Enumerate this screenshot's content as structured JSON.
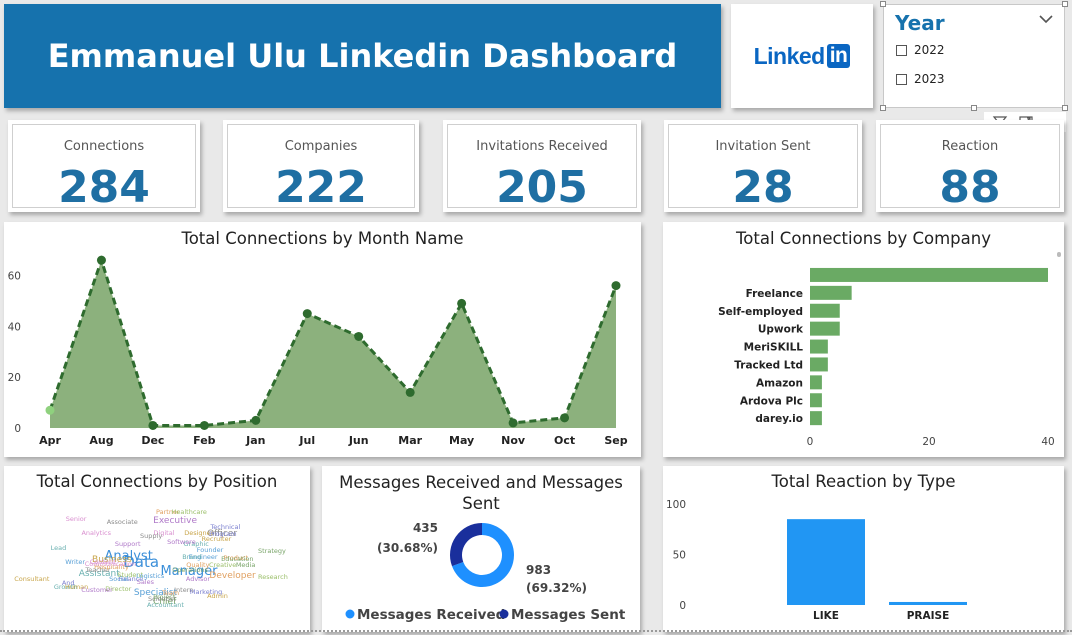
{
  "header": {
    "title": "Emmanuel Ulu Linkedin Dashboard"
  },
  "logo": {
    "word": "Linked",
    "mark": "in"
  },
  "slicer": {
    "title": "Year",
    "options": [
      {
        "label": "2022",
        "checked": false
      },
      {
        "label": "2023",
        "checked": false
      }
    ]
  },
  "visual_header_icons": [
    "filter-icon",
    "focus-mode-icon",
    "more-options-icon"
  ],
  "kpis": [
    {
      "label": "Connections",
      "value": "284"
    },
    {
      "label": "Companies",
      "value": "222"
    },
    {
      "label": "Invitations Received",
      "value": "205"
    },
    {
      "label": "Invitation Sent",
      "value": "28"
    },
    {
      "label": "Reaction",
      "value": "88"
    }
  ],
  "colors": {
    "banner": "#1672ad",
    "kpi_value": "#1f6fa3",
    "area_fill": "#7fa86f",
    "area_line": "#2e6b2e",
    "bar_green": "#6aaa64",
    "msg_received": "#1e90ff",
    "msg_sent": "#1a2f9c",
    "reaction_bar": "#2196f3"
  },
  "position_title": "Total Connections by Position",
  "wordcloud_words": [
    "Data",
    "Analyst",
    "Manager",
    "Specialist",
    "Business",
    "Officer",
    "Assistant",
    "Executive",
    "Developer",
    "Chief",
    "Marketing",
    "Content",
    "Research",
    "Engineer",
    "Consultant",
    "Intern",
    "Lead",
    "Sales",
    "Product",
    "Project",
    "Finance",
    "Digital",
    "Student",
    "Founder",
    "Recruiter",
    "Scientist",
    "Growth",
    "Support",
    "Team",
    "Operations",
    "And",
    "Senior",
    "Director",
    "Writer",
    "Designer",
    "Teacher",
    "Accountant",
    "Advisor",
    "Partner",
    "Strategy",
    "Technical",
    "Analytics",
    "Creative",
    "Social",
    "Human",
    "Supply",
    "Brand",
    "Customer",
    "Hospitality",
    "Education",
    "Program",
    "Communication",
    "Healthcare",
    "Logistics",
    "Admin",
    "Associate",
    "Graphic",
    "Software",
    "Quality",
    "Media"
  ],
  "chart_data": [
    {
      "type": "area",
      "title": "Total Connections by Month Name",
      "categories": [
        "Apr",
        "Aug",
        "Dec",
        "Feb",
        "Jan",
        "Jul",
        "Jun",
        "Mar",
        "May",
        "Nov",
        "Oct",
        "Sep"
      ],
      "values": [
        7,
        66,
        1,
        1,
        3,
        45,
        36,
        14,
        49,
        2,
        4,
        56
      ],
      "yticks": [
        "0",
        "20",
        "40",
        "60"
      ],
      "ylim": [
        0,
        70
      ]
    },
    {
      "type": "bar",
      "orientation": "horizontal",
      "title": "Total Connections by Company",
      "categories": [
        "",
        "Freelance",
        "Self-employed",
        "Upwork",
        "MeriSKILL",
        "Tracked Ltd",
        "Amazon",
        "Ardova Plc",
        "darey.io"
      ],
      "values": [
        40,
        7,
        5,
        5,
        3,
        3,
        2,
        2,
        2
      ],
      "xticks": [
        "0",
        "20",
        "40"
      ],
      "xlim": [
        0,
        42
      ]
    },
    {
      "type": "pie",
      "donut": true,
      "title": "Messages Received and Messages Sent",
      "slices": [
        {
          "name": "Messages Received",
          "value": 983,
          "label": "983",
          "pct": "(69.32%)"
        },
        {
          "name": "Messages Sent",
          "value": 435,
          "label": "435",
          "pct": "(30.68%)"
        }
      ]
    },
    {
      "type": "bar",
      "title": "Total Reaction by Type",
      "categories": [
        "LIKE",
        "PRAISE"
      ],
      "values": [
        85,
        3
      ],
      "yticks": [
        "0",
        "50",
        "100"
      ],
      "ylim": [
        0,
        100
      ]
    }
  ]
}
